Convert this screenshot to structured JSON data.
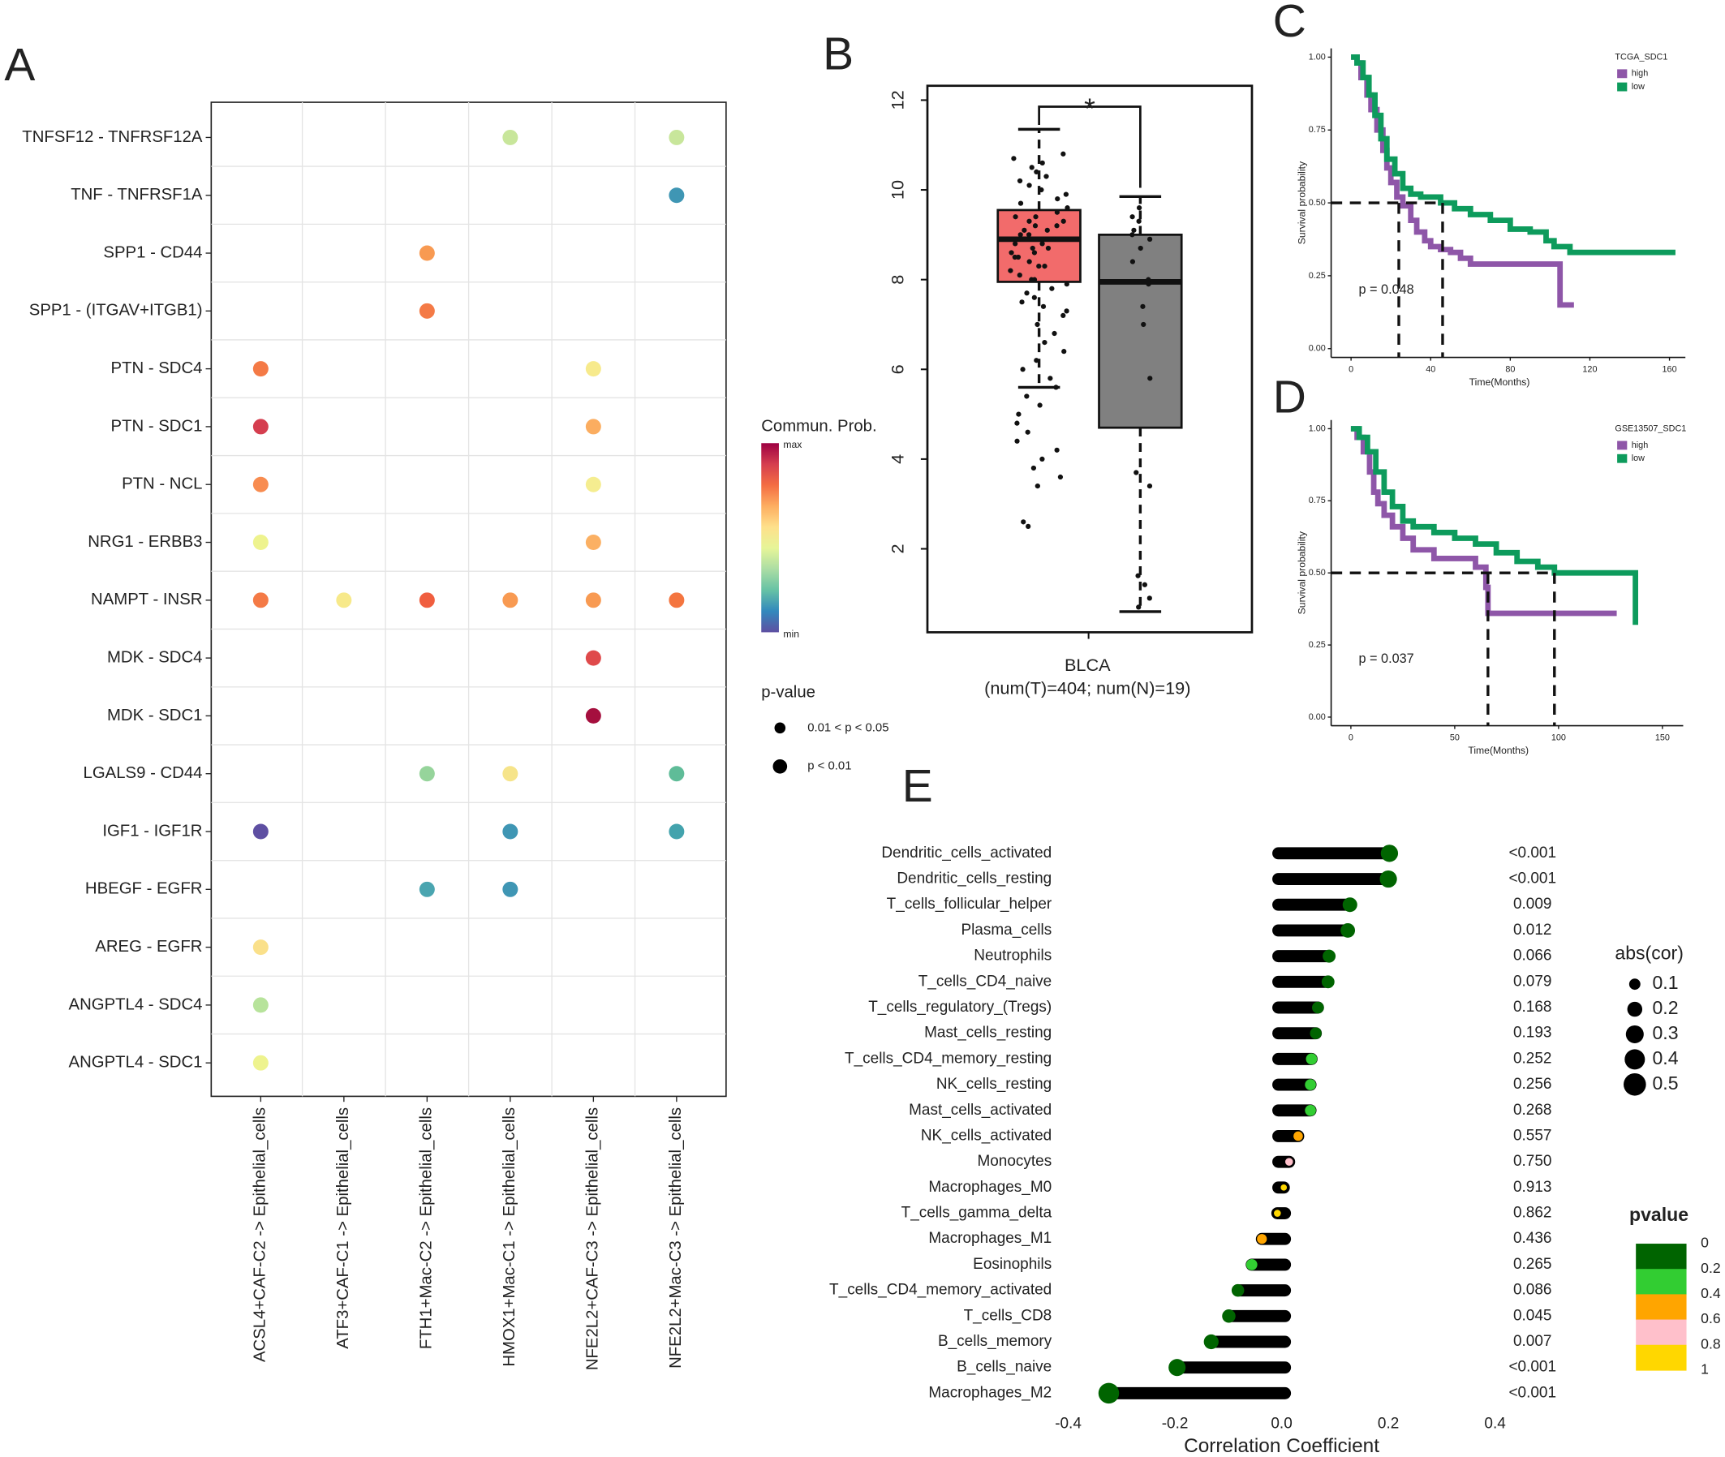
{
  "chart_data": [
    {
      "type": "dotplot",
      "panel_label": "A",
      "x_categories": [
        "ACSL4+CAF-C2 -> Epithelial_cells",
        "ATF3+CAF-C1 -> Epithelial_cells",
        "FTH1+Mac-C2 -> Epithelial_cells",
        "HMOX1+Mac-C1 -> Epithelial_cells",
        "NFE2L2+CAF-C3 -> Epithelial_cells",
        "NFE2L2+Mac-C3 -> Epithelial_cells"
      ],
      "y_categories": [
        "TNFSF12 - TNFRSF12A",
        "TNF - TNFRSF1A",
        "SPP1 - CD44",
        "SPP1 - (ITGAV+ITGB1)",
        "PTN - SDC4",
        "PTN - SDC1",
        "PTN - NCL",
        "NRG1 - ERBB3",
        "NAMPT - INSR",
        "MDK - SDC4",
        "MDK - SDC1",
        "LGALS9 - CD44",
        "IGF1 - IGF1R",
        "HBEGF - EGFR",
        "AREG - EGFR",
        "ANGPTL4 - SDC4",
        "ANGPTL4 - SDC1"
      ],
      "points": [
        {
          "x": 3,
          "y": 0,
          "color": "#c8e69b"
        },
        {
          "x": 5,
          "y": 0,
          "color": "#c8e69b"
        },
        {
          "x": 5,
          "y": 1,
          "color": "#3f96b4"
        },
        {
          "x": 2,
          "y": 2,
          "color": "#f89a52"
        },
        {
          "x": 2,
          "y": 3,
          "color": "#f47a46"
        },
        {
          "x": 0,
          "y": 4,
          "color": "#f47a46"
        },
        {
          "x": 4,
          "y": 4,
          "color": "#f7ea8c"
        },
        {
          "x": 0,
          "y": 5,
          "color": "#d53e4f"
        },
        {
          "x": 4,
          "y": 5,
          "color": "#fbad60"
        },
        {
          "x": 0,
          "y": 6,
          "color": "#f88c50"
        },
        {
          "x": 4,
          "y": 6,
          "color": "#f5ed90"
        },
        {
          "x": 0,
          "y": 7,
          "color": "#eef38e"
        },
        {
          "x": 4,
          "y": 7,
          "color": "#fbb063"
        },
        {
          "x": 0,
          "y": 8,
          "color": "#f47a46"
        },
        {
          "x": 1,
          "y": 8,
          "color": "#f7e98a"
        },
        {
          "x": 2,
          "y": 8,
          "color": "#f05e3f"
        },
        {
          "x": 3,
          "y": 8,
          "color": "#f89a52"
        },
        {
          "x": 4,
          "y": 8,
          "color": "#f89a52"
        },
        {
          "x": 5,
          "y": 8,
          "color": "#f4753f"
        },
        {
          "x": 4,
          "y": 9,
          "color": "#df4a4b"
        },
        {
          "x": 4,
          "y": 10,
          "color": "#a50f3e"
        },
        {
          "x": 2,
          "y": 11,
          "color": "#96d49b"
        },
        {
          "x": 3,
          "y": 11,
          "color": "#f6e48a"
        },
        {
          "x": 5,
          "y": 11,
          "color": "#5fbc98"
        },
        {
          "x": 0,
          "y": 12,
          "color": "#5e4fa2"
        },
        {
          "x": 3,
          "y": 12,
          "color": "#3f96b4"
        },
        {
          "x": 5,
          "y": 12,
          "color": "#43a3ad"
        },
        {
          "x": 2,
          "y": 13,
          "color": "#4aa5b0"
        },
        {
          "x": 3,
          "y": 13,
          "color": "#3f96b4"
        },
        {
          "x": 0,
          "y": 14,
          "color": "#fae08a"
        },
        {
          "x": 0,
          "y": 15,
          "color": "#b7e39b"
        },
        {
          "x": 0,
          "y": 16,
          "color": "#eef38e"
        }
      ],
      "legend_title": "Commun. Prob.",
      "colorbar_labels": [
        "max",
        "min"
      ],
      "colorbar_colors": [
        "#9e0142",
        "#d53e4f",
        "#f46d43",
        "#fdae61",
        "#fee08b",
        "#e6f598",
        "#abdda4",
        "#66c2a5",
        "#3288bd",
        "#5e4fa2"
      ],
      "size_legend_title": "p-value",
      "size_legend_labels": [
        "0.01 < p < 0.05",
        "p < 0.01"
      ]
    },
    {
      "type": "box",
      "panel_label": "B",
      "categories": [
        "BLCA"
      ],
      "category_note": "(num(T)=404; num(N)=19)",
      "ylim": [
        0.14,
        12.32
      ],
      "yticks": [
        2,
        4,
        6,
        8,
        10,
        12
      ],
      "annotation": "*",
      "annotation_color": "#e41a1c",
      "boxes": [
        {
          "color": "#f26b6b",
          "whisker_low": 5.6,
          "q1": 7.95,
          "median": 8.9,
          "q3": 9.55,
          "whisker_high": 11.35,
          "points": [
            10.8,
            10.7,
            10.6,
            10.5,
            10.4,
            10.3,
            10.2,
            10.1,
            10.0,
            9.9,
            9.8,
            9.7,
            9.6,
            9.5,
            9.4,
            9.3,
            9.2,
            9.1,
            9.0,
            8.9,
            8.8,
            8.7,
            8.6,
            8.5,
            8.4,
            8.3,
            8.2,
            8.1,
            8.0,
            7.9,
            7.8,
            7.7,
            7.6,
            7.5,
            7.4,
            7.3,
            7.2,
            7.0,
            6.8,
            6.6,
            6.4,
            6.2,
            6.0,
            5.8,
            5.6,
            5.4,
            5.2,
            5.0,
            4.8,
            4.6,
            4.4,
            4.2,
            4.0,
            3.8,
            3.6,
            3.4,
            2.6,
            2.5,
            9.0,
            8.9,
            8.8,
            9.2,
            8.6,
            9.4,
            8.5,
            8.3,
            9.1,
            8.7,
            9.3,
            8.0
          ]
        },
        {
          "color": "#808080",
          "whisker_low": 0.6,
          "q1": 4.7,
          "median": 7.95,
          "q3": 9.0,
          "whisker_high": 9.85,
          "points": [
            9.6,
            9.3,
            9.1,
            9.0,
            8.7,
            8.4,
            7.4,
            7.0,
            5.8,
            3.7,
            3.4,
            1.4,
            1.2,
            0.9,
            0.7,
            8.0,
            7.9,
            8.9,
            9.4
          ]
        }
      ]
    },
    {
      "type": "survival",
      "panel_label": "C",
      "legend_title": "TCGA_SDC1",
      "xlabel": "Time(Months)",
      "ylabel": "Survival probability",
      "annotation": "p = 0.048",
      "xlim": [
        -10,
        168
      ],
      "xticks": [
        0,
        40,
        80,
        120,
        160
      ],
      "ylim": [
        -0.03,
        1.03
      ],
      "yticks": [
        {
          "value": 0,
          "label": "0.00"
        },
        {
          "value": 0.25,
          "label": "0.25"
        },
        {
          "value": 0.5,
          "label": "0.50"
        },
        {
          "value": 0.75,
          "label": "0.75"
        },
        {
          "value": 1,
          "label": "1.00"
        }
      ],
      "medians": [
        24,
        46
      ],
      "series": [
        {
          "name": "high",
          "color": "#8e56a8",
          "x": [
            0,
            3,
            5,
            8,
            10,
            13,
            16,
            18,
            20,
            23,
            26,
            30,
            33,
            37,
            40,
            45,
            50,
            55,
            60,
            100,
            105,
            112
          ],
          "values": [
            1,
            0.98,
            0.93,
            0.87,
            0.82,
            0.75,
            0.68,
            0.62,
            0.57,
            0.52,
            0.49,
            0.44,
            0.4,
            0.37,
            0.35,
            0.34,
            0.33,
            0.31,
            0.29,
            0.29,
            0.15,
            0.15
          ]
        },
        {
          "name": "low",
          "color": "#0d9b5c",
          "x": [
            0,
            3,
            6,
            9,
            12,
            15,
            18,
            22,
            26,
            30,
            35,
            45,
            52,
            60,
            70,
            80,
            90,
            98,
            102,
            110,
            163
          ],
          "values": [
            1,
            0.98,
            0.93,
            0.87,
            0.8,
            0.72,
            0.65,
            0.6,
            0.55,
            0.53,
            0.52,
            0.5,
            0.48,
            0.46,
            0.44,
            0.41,
            0.4,
            0.37,
            0.35,
            0.33,
            0.33
          ]
        }
      ]
    },
    {
      "type": "survival",
      "panel_label": "D",
      "legend_title": "GSE13507_SDC1",
      "xlabel": "Time(Months)",
      "ylabel": "Survival probability",
      "annotation": "p = 0.037",
      "xlim": [
        -9.5,
        160
      ],
      "xticks": [
        0,
        50,
        100,
        150
      ],
      "ylim": [
        -0.03,
        1.03
      ],
      "yticks": [
        {
          "value": 0,
          "label": "0.00"
        },
        {
          "value": 0.25,
          "label": "0.25"
        },
        {
          "value": 0.5,
          "label": "0.50"
        },
        {
          "value": 0.75,
          "label": "0.75"
        },
        {
          "value": 1,
          "label": "1.00"
        }
      ],
      "medians": [
        66,
        98
      ],
      "series": [
        {
          "name": "high",
          "color": "#8e56a8",
          "x": [
            0,
            3,
            6,
            9,
            11,
            13,
            16,
            20,
            25,
            30,
            40,
            60,
            65,
            66,
            128
          ],
          "values": [
            1,
            0.97,
            0.92,
            0.85,
            0.78,
            0.74,
            0.7,
            0.66,
            0.62,
            0.58,
            0.55,
            0.52,
            0.45,
            0.36,
            0.36
          ]
        },
        {
          "name": "low",
          "color": "#0d9b5c",
          "x": [
            0,
            4,
            8,
            12,
            16,
            20,
            25,
            30,
            40,
            50,
            60,
            70,
            80,
            90,
            98,
            136,
            137
          ],
          "values": [
            1,
            0.97,
            0.92,
            0.85,
            0.78,
            0.73,
            0.68,
            0.66,
            0.64,
            0.62,
            0.6,
            0.57,
            0.54,
            0.52,
            0.5,
            0.5,
            0.32
          ]
        }
      ]
    },
    {
      "type": "lollipop",
      "panel_label": "E",
      "categories": [
        "Dendritic_cells_activated",
        "Dendritic_cells_resting",
        "T_cells_follicular_helper",
        "Plasma_cells",
        "Neutrophils",
        "T_cells_CD4_naive",
        "T_cells_regulatory_(Tregs)",
        "Mast_cells_resting",
        "T_cells_CD4_memory_resting",
        "NK_cells_resting",
        "Mast_cells_activated",
        "NK_cells_activated",
        "Monocytes",
        "Macrophages_M0",
        "T_cells_gamma_delta",
        "Macrophages_M1",
        "Eosinophils",
        "T_cells_CD4_memory_activated",
        "T_cells_CD8",
        "B_cells_memory",
        "B_cells_naive",
        "Macrophages_M2"
      ],
      "values": [
        0.202,
        0.2,
        0.128,
        0.124,
        0.089,
        0.087,
        0.068,
        0.064,
        0.056,
        0.054,
        0.054,
        0.031,
        0.014,
        0.004,
        -0.008,
        -0.037,
        -0.056,
        -0.082,
        -0.099,
        -0.132,
        -0.196,
        -0.324
      ],
      "colors": [
        "#006400",
        "#006400",
        "#006400",
        "#006400",
        "#006400",
        "#006400",
        "#006400",
        "#006400",
        "#32cd32",
        "#32cd32",
        "#32cd32",
        "#ffa500",
        "#ffc0cb",
        "#ffd700",
        "#ffd700",
        "#ffa500",
        "#32cd32",
        "#006400",
        "#006400",
        "#006400",
        "#006400",
        "#006400"
      ],
      "pvalue_labels": [
        "<0.001",
        "<0.001",
        "0.009",
        "0.012",
        "0.066",
        "0.079",
        "0.168",
        "0.193",
        "0.252",
        "0.256",
        "0.268",
        "0.557",
        "0.750",
        "0.913",
        "0.862",
        "0.436",
        "0.265",
        "0.086",
        "0.045",
        "0.007",
        "<0.001",
        "<0.001"
      ],
      "pvalue_label_colors": [
        "#e00000",
        "#e00000",
        "#e00000",
        "#e00000",
        "#222222",
        "#222222",
        "#222222",
        "#222222",
        "#222222",
        "#222222",
        "#222222",
        "#222222",
        "#222222",
        "#222222",
        "#222222",
        "#222222",
        "#222222",
        "#222222",
        "#e00000",
        "#e00000",
        "#e00000",
        "#e00000"
      ],
      "xlim": [
        -0.42,
        0.42
      ],
      "xticks": [
        -0.4,
        -0.2,
        {
          "value": 0,
          "label": "0.0"
        },
        0.2,
        0.4
      ],
      "xlabel": "Correlation Coefficient",
      "size_legend_title": "abs(cor)",
      "size_legend_values": [
        0.1,
        0.2,
        0.3,
        0.4,
        0.5
      ],
      "color_legend_title": "pvalue",
      "color_legend_ticks": [
        0,
        0.2,
        0.4,
        0.6,
        0.8,
        1
      ],
      "color_legend_colors": [
        "#006400",
        "#32cd32",
        "#ffa500",
        "#ffc0cb",
        "#ffd700"
      ]
    }
  ]
}
